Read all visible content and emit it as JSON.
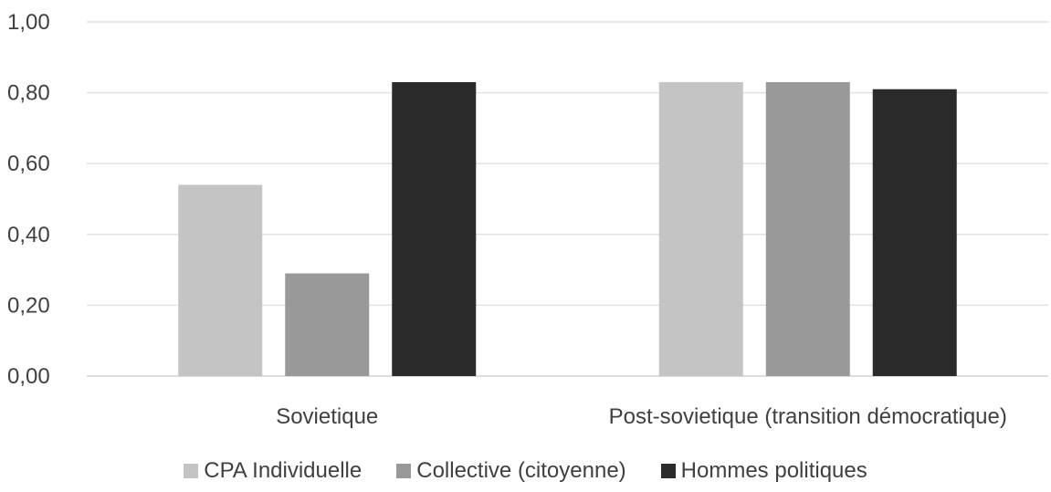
{
  "chart_data": {
    "type": "bar",
    "categories": [
      "Sovietique",
      "Post-sovietique (transition démocratique)"
    ],
    "series": [
      {
        "name": "CPA Individuelle",
        "color": "#c4c4c4",
        "values": [
          0.54,
          0.83
        ]
      },
      {
        "name": "Collective (citoyenne)",
        "color": "#999999",
        "values": [
          0.29,
          0.83
        ]
      },
      {
        "name": "Hommes politiques",
        "color": "#2b2b2b",
        "values": [
          0.83,
          0.81
        ]
      }
    ],
    "ylim": [
      0,
      1
    ],
    "yticks": [
      {
        "value": 0,
        "label": "0,00"
      },
      {
        "value": 0.2,
        "label": "0,20"
      },
      {
        "value": 0.4,
        "label": "0,40"
      },
      {
        "value": 0.6,
        "label": "0,60"
      },
      {
        "value": 0.8,
        "label": "0,80"
      },
      {
        "value": 1,
        "label": "1,00"
      }
    ],
    "grid": true,
    "legend_position": "bottom",
    "title": "",
    "xlabel": "",
    "ylabel": ""
  }
}
